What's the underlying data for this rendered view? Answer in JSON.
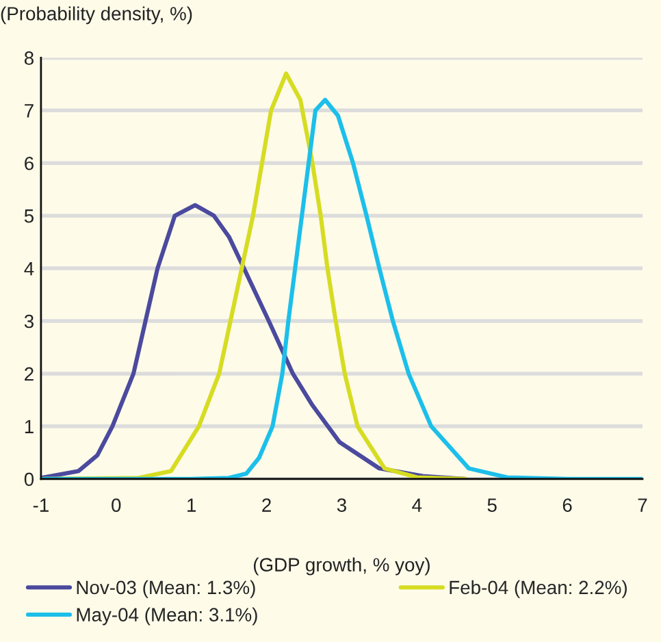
{
  "chart_data": {
    "type": "line",
    "xlabel": "(GDP growth, % yoy)",
    "ylabel": "(Probability density, %)",
    "xlim": [
      -1,
      7
    ],
    "xticks": [
      -1,
      0,
      1,
      2,
      3,
      4,
      5,
      6,
      7
    ],
    "ylim": [
      0,
      8
    ],
    "yticks": [
      0,
      1,
      2,
      3,
      4,
      5,
      6,
      7,
      8
    ],
    "grid": "y",
    "legend": "bottom",
    "marker": "none",
    "line_style": "solid",
    "series": [
      {
        "name": "Nov-03 (Mean: 1.3%)",
        "color": "#4b4a9e",
        "x": [
          -1,
          -0.5,
          -0.25,
          -0.05,
          0.23,
          0.39,
          0.55,
          0.78,
          1.05,
          1.3,
          1.5,
          1.7,
          2.03,
          2.35,
          2.61,
          2.97,
          3.5,
          4.1,
          4.64
        ],
        "values": [
          0.02,
          0.15,
          0.45,
          1,
          2,
          3,
          4,
          5,
          5.2,
          5.0,
          4.6,
          4,
          3,
          2,
          1.4,
          0.7,
          0.2,
          0.05,
          0
        ]
      },
      {
        "name": "Feb-04 (Mean: 2.2%)",
        "color": "#d6dc22",
        "x": [
          -1,
          0.3,
          0.73,
          1.1,
          1.37,
          1.52,
          1.67,
          1.82,
          1.94,
          2.06,
          2.26,
          2.45,
          2.61,
          2.72,
          2.81,
          2.92,
          3.04,
          3.21,
          3.57,
          4.0,
          4.64
        ],
        "values": [
          0,
          0.02,
          0.15,
          1,
          2,
          3,
          4,
          5,
          6,
          7,
          7.7,
          7.2,
          6,
          5,
          4,
          3,
          2,
          1,
          0.2,
          0.03,
          0
        ]
      },
      {
        "name": "May-04 (Mean: 3.1%)",
        "color": "#1cbfea",
        "x": [
          -1,
          1.0,
          1.5,
          1.73,
          1.9,
          2.08,
          2.21,
          2.29,
          2.38,
          2.47,
          2.56,
          2.65,
          2.78,
          2.95,
          3.15,
          3.33,
          3.5,
          3.68,
          3.89,
          4.19,
          4.69,
          5.2,
          6,
          7
        ],
        "values": [
          0,
          0,
          0.02,
          0.1,
          0.4,
          1,
          2,
          3,
          4,
          5,
          6,
          7,
          7.2,
          6.9,
          6,
          5,
          4,
          3,
          2,
          1,
          0.2,
          0.03,
          0,
          0
        ]
      }
    ]
  }
}
